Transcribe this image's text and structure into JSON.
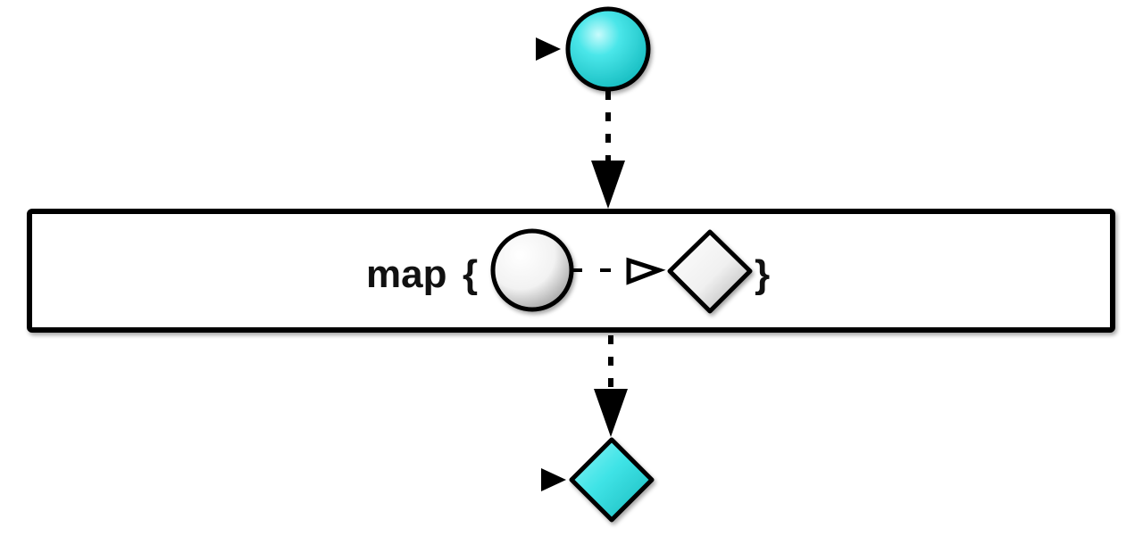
{
  "diagram": {
    "operator": {
      "name": "map",
      "open_brace": "{",
      "close_brace": "}"
    }
  },
  "colors": {
    "accent": "#3fe3e6",
    "stroke": "#000000",
    "box_fill": "#ffffff"
  },
  "icons": {
    "input_marble": "circle-marble-icon",
    "output_marble": "diamond-marble-icon",
    "transform_input": "circle-shape-icon",
    "transform_output": "diamond-shape-icon",
    "transform_arrow": "open-triangle-arrow-icon"
  }
}
